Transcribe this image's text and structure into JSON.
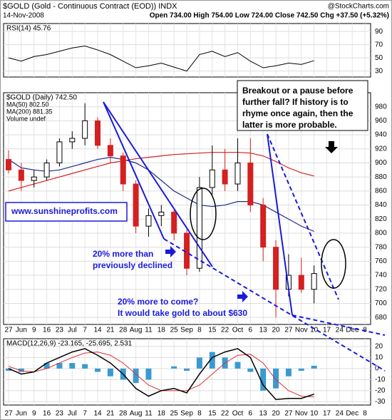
{
  "header": {
    "title": "$GOLD (Gold - Continuous Contract (EOD)) INDX",
    "source": "@StockCharts.com",
    "date": "14-Nov-2008",
    "quote": "Open 734.00 High 754.00 Low 724.00 Close 742.50 Chg +37.50 (+5.32%)"
  },
  "chart_data": [
    {
      "type": "line",
      "legend": [
        "RSI(14) 45.76"
      ],
      "series": [
        {
          "name": "RSI(14)",
          "color": "#000000",
          "values": [
            50,
            45,
            52,
            55,
            60,
            65,
            68,
            62,
            55,
            45,
            35,
            38,
            42,
            36,
            30,
            55,
            60,
            52,
            58,
            45,
            35,
            38,
            42,
            40,
            45.76,
            null,
            null,
            null,
            null
          ]
        }
      ],
      "ylim": [
        21,
        102
      ],
      "yticks": [
        30,
        50,
        70,
        90
      ],
      "grid": true
    },
    {
      "type": "candlestick",
      "legend": [
        "$GOLD (Daily) 742.50",
        "MA(50) 802.50",
        "MA(200) 881.35",
        "Volume undef"
      ],
      "categories": [
        "27",
        "Jun",
        "9",
        "16",
        "23",
        "Jul",
        "7",
        "14",
        "21",
        "28",
        "Aug",
        "11",
        "18",
        "25",
        "Sep",
        "8",
        "15",
        "22",
        "Oct",
        "6",
        "13",
        "20",
        "27",
        "Nov",
        "10",
        "17",
        "24",
        "Dec",
        "8"
      ],
      "open": [
        905,
        890,
        875,
        880,
        900,
        930,
        935,
        960,
        925,
        910,
        870,
        810,
        825,
        830,
        800,
        750,
        865,
        890,
        870,
        900,
        840,
        780,
        720,
        740,
        720,
        null,
        null,
        null,
        null
      ],
      "high": [
        918,
        900,
        890,
        905,
        935,
        945,
        985,
        965,
        935,
        915,
        875,
        835,
        840,
        835,
        805,
        880,
        925,
        920,
        935,
        935,
        850,
        790,
        770,
        765,
        754,
        null,
        null,
        null,
        null
      ],
      "low": [
        885,
        860,
        865,
        875,
        895,
        920,
        925,
        920,
        900,
        860,
        800,
        795,
        810,
        790,
        740,
        745,
        855,
        860,
        860,
        830,
        760,
        680,
        710,
        715,
        700,
        null,
        null,
        null,
        null
      ],
      "close": [
        890,
        875,
        880,
        900,
        930,
        935,
        960,
        925,
        910,
        870,
        810,
        825,
        830,
        800,
        750,
        865,
        890,
        870,
        900,
        840,
        780,
        720,
        740,
        720,
        742.5,
        null,
        null,
        null,
        null
      ],
      "series": [
        {
          "name": "MA(50)",
          "color": "#1f2a8c",
          "values": [
            905,
            893,
            890,
            888,
            890,
            895,
            900,
            905,
            908,
            905,
            900,
            890,
            875,
            860,
            850,
            840,
            838,
            840,
            845,
            845,
            840,
            830,
            820,
            810,
            802.5,
            null,
            null,
            null,
            null
          ]
        },
        {
          "name": "MA(200)",
          "color": "#d42020",
          "values": [
            860,
            865,
            870,
            875,
            880,
            885,
            890,
            895,
            900,
            903,
            906,
            908,
            910,
            912,
            913,
            914,
            915,
            915,
            915,
            914,
            910,
            902,
            893,
            886,
            881.35,
            null,
            null,
            null,
            null
          ]
        }
      ],
      "ylim": [
        670,
        1000
      ],
      "yticks": [
        680,
        700,
        720,
        740,
        760,
        780,
        800,
        820,
        840,
        860,
        880,
        900,
        920,
        940,
        960,
        980
      ],
      "grid": true
    },
    {
      "type": "macd",
      "legend": [
        "MACD(12,26,9) -23.165, -25.695, 2.531"
      ],
      "categories": [
        "27",
        "Jun",
        "9",
        "16",
        "23",
        "Jul",
        "7",
        "14",
        "21",
        "28",
        "Aug",
        "11",
        "18",
        "25",
        "Sep",
        "8",
        "15",
        "22",
        "Oct",
        "6",
        "13",
        "20",
        "27",
        "Nov",
        "10",
        "17",
        "24",
        "Dec",
        "8"
      ],
      "series": [
        {
          "name": "MACD",
          "color": "#000000",
          "values": [
            0,
            -5,
            -3,
            5,
            10,
            15,
            18,
            12,
            5,
            -5,
            -18,
            -25,
            -20,
            -18,
            -22,
            -5,
            10,
            15,
            18,
            10,
            -15,
            -28,
            -27,
            -27,
            -23.165,
            null,
            null,
            null,
            null
          ]
        },
        {
          "name": "Signal",
          "color": "#e03030",
          "values": [
            2,
            -2,
            -3,
            0,
            5,
            10,
            14,
            15,
            12,
            5,
            -5,
            -15,
            -20,
            -20,
            -20,
            -15,
            -5,
            5,
            12,
            13,
            5,
            -10,
            -20,
            -25,
            -25.695,
            null,
            null,
            null,
            null
          ]
        },
        {
          "name": "Histogram",
          "color": "#3a9ad0",
          "values": [
            -2,
            -3,
            0,
            5,
            5,
            5,
            4,
            -3,
            -7,
            -10,
            -13,
            -10,
            0,
            2,
            -2,
            10,
            15,
            10,
            6,
            -3,
            -20,
            -18,
            -7,
            -2,
            2.531,
            null,
            null,
            null,
            null
          ]
        }
      ],
      "ylim": [
        -33,
        27
      ],
      "yticks": [
        -30,
        -20,
        -10,
        0,
        10,
        20
      ],
      "grid": true
    }
  ],
  "annotations": {
    "question": [
      "Breakout or a pause before",
      "further fall? If history is to",
      "rhyme once again, then the",
      "latter is more probable."
    ],
    "website": "www.sunshineprofits.com",
    "first_note": [
      "20% more than",
      "previously declined"
    ],
    "second_note": [
      "20% more to come?",
      "It would take gold to about $630"
    ]
  }
}
